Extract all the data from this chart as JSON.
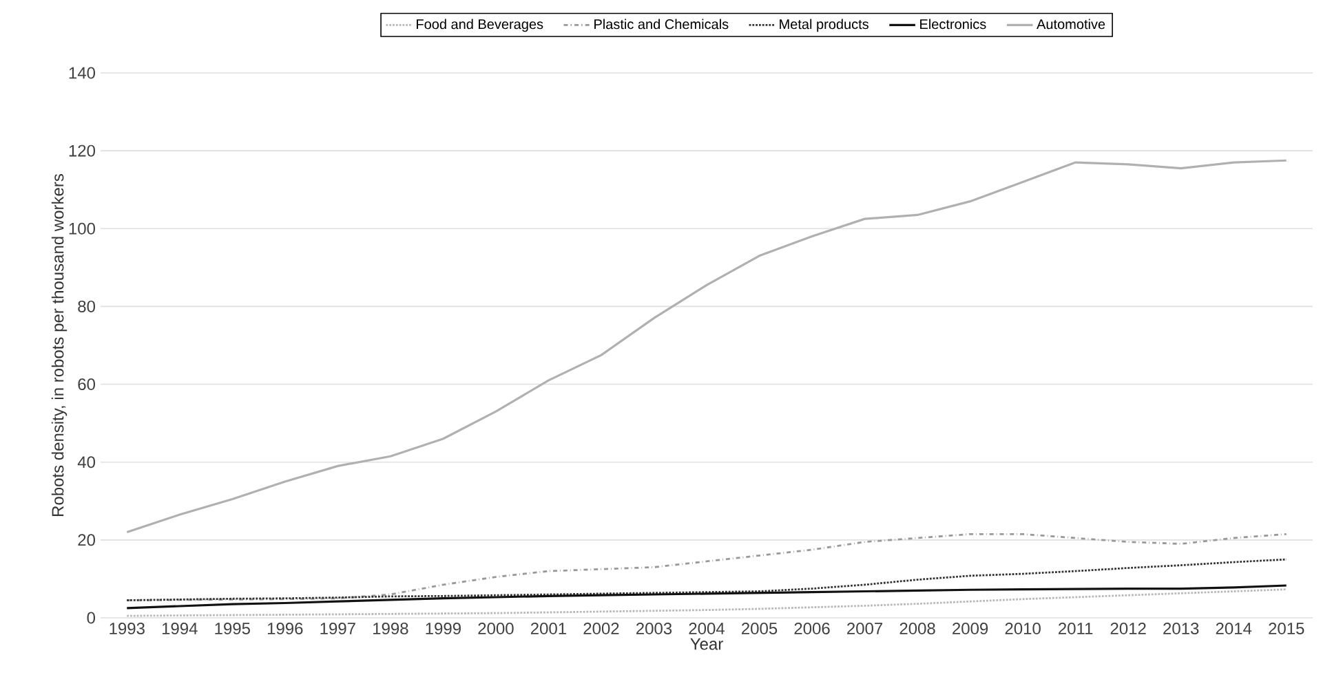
{
  "chart_data": {
    "type": "line",
    "xlabel": "Year",
    "ylabel": "Robots density, in robots per thousand workers",
    "categories": [
      "1993",
      "1994",
      "1995",
      "1996",
      "1997",
      "1998",
      "1999",
      "2000",
      "2001",
      "2002",
      "2003",
      "2004",
      "2005",
      "2006",
      "2007",
      "2008",
      "2009",
      "2010",
      "2011",
      "2012",
      "2013",
      "2014",
      "2015"
    ],
    "ylim": [
      0,
      140
    ],
    "yticks": [
      0,
      20,
      40,
      60,
      80,
      100,
      120,
      140
    ],
    "grid": "y",
    "legend": "top",
    "series": [
      {
        "name": "Food and Beverages",
        "color": "#b8b8b8",
        "line_style": "dotted",
        "values": [
          0.5,
          0.6,
          0.7,
          0.8,
          0.9,
          1,
          1.1,
          1.2,
          1.4,
          1.6,
          1.8,
          2,
          2.3,
          2.7,
          3.1,
          3.6,
          4.2,
          4.8,
          5.3,
          5.8,
          6.3,
          6.8,
          7.3
        ]
      },
      {
        "name": "Plastic and Chemicals",
        "color": "#999999",
        "line_style": "dashdot",
        "values": [
          4.5,
          4.6,
          4.7,
          4.8,
          5,
          6,
          8.5,
          10.5,
          12,
          12.5,
          13,
          14.5,
          16,
          17.5,
          19.5,
          20.5,
          21.5,
          21.5,
          20.5,
          19.5,
          19,
          20.5,
          21.5
        ]
      },
      {
        "name": "Metal products",
        "color": "#333333",
        "line_style": "dotted",
        "values": [
          4.5,
          4.7,
          4.9,
          5,
          5.2,
          5.5,
          5.6,
          5.8,
          6,
          6.2,
          6.4,
          6.6,
          6.8,
          7.5,
          8.5,
          9.8,
          10.8,
          11.3,
          12,
          12.8,
          13.5,
          14.3,
          15
        ]
      },
      {
        "name": "Electronics",
        "color": "#111111",
        "line_style": "solid",
        "values": [
          2.5,
          3,
          3.5,
          3.8,
          4.2,
          4.6,
          5,
          5.3,
          5.6,
          5.8,
          6,
          6.2,
          6.4,
          6.6,
          6.8,
          7,
          7.2,
          7.3,
          7.4,
          7.5,
          7.5,
          7.8,
          8.3
        ]
      },
      {
        "name": "Automotive",
        "color": "#b0b0b0",
        "line_style": "solid",
        "values": [
          22,
          26.5,
          30.5,
          35,
          39,
          41.5,
          46,
          53,
          61,
          67.5,
          77,
          85.5,
          93,
          98,
          102.5,
          103.5,
          107,
          112,
          117,
          116.5,
          115.5,
          117,
          117.5
        ]
      }
    ]
  }
}
